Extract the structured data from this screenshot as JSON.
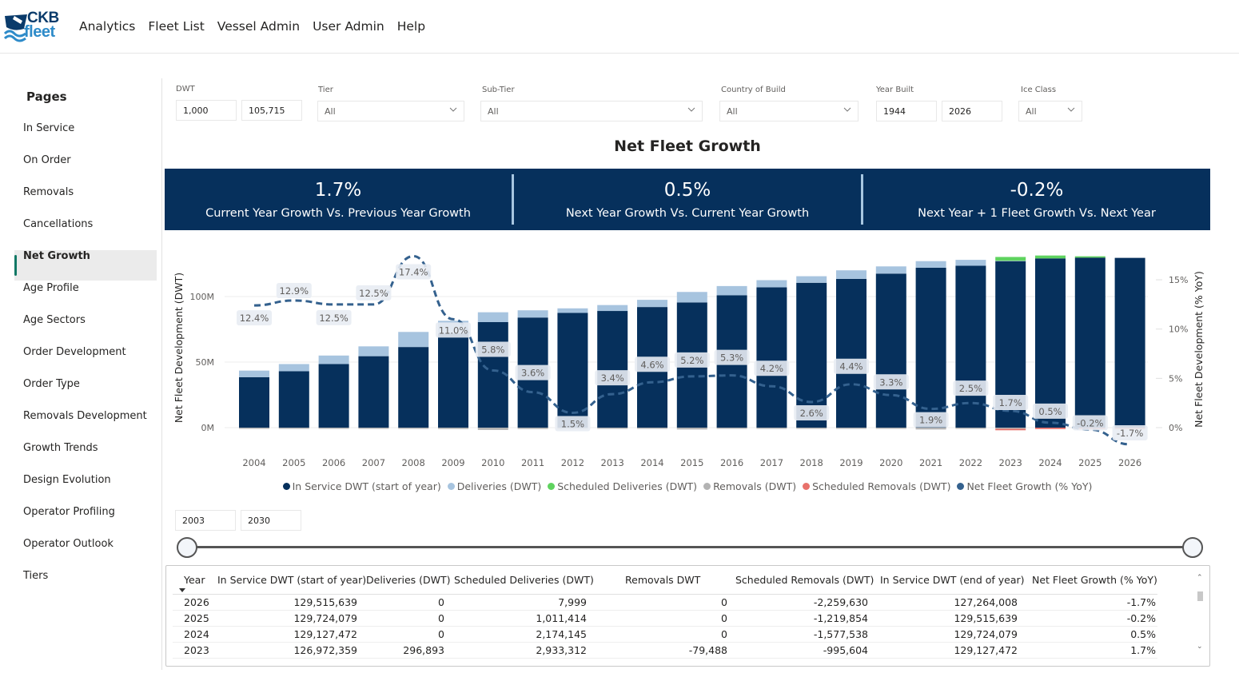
{
  "app": {
    "logo_top": "CKB",
    "logo_bottom": "fleet",
    "nav": [
      "Analytics",
      "Fleet List",
      "Vessel Admin",
      "User Admin",
      "Help"
    ]
  },
  "sidebar": {
    "title": "Pages",
    "items": [
      {
        "label": "In Service",
        "active": false
      },
      {
        "label": "On Order",
        "active": false
      },
      {
        "label": "Removals",
        "active": false
      },
      {
        "label": "Cancellations",
        "active": false
      },
      {
        "label": "Net Growth",
        "active": true
      },
      {
        "label": "Age Profile",
        "active": false
      },
      {
        "label": "Age Sectors",
        "active": false
      },
      {
        "label": "Order Development",
        "active": false
      },
      {
        "label": "Order Type",
        "active": false
      },
      {
        "label": "Removals Development",
        "active": false
      },
      {
        "label": "Growth Trends",
        "active": false
      },
      {
        "label": "Design Evolution",
        "active": false
      },
      {
        "label": "Operator Profiling",
        "active": false
      },
      {
        "label": "Operator Outlook",
        "active": false
      },
      {
        "label": "Tiers",
        "active": false
      }
    ]
  },
  "filters": {
    "dwt": {
      "label": "DWT",
      "min": "1,000",
      "max": "105,715"
    },
    "tier": {
      "label": "Tier",
      "value": "All"
    },
    "sub_tier": {
      "label": "Sub-Tier",
      "value": "All"
    },
    "country": {
      "label": "Country of Build",
      "value": "All"
    },
    "year_built": {
      "label": "Year Built",
      "min": "1944",
      "max": "2026"
    },
    "ice_class": {
      "label": "Ice Class",
      "value": "All"
    }
  },
  "page_title": "Net Fleet Growth",
  "kpis": [
    {
      "value": "1.7%",
      "label": "Current Year Growth Vs. Previous Year Growth"
    },
    {
      "value": "0.5%",
      "label": "Next Year Growth Vs. Current Year Growth"
    },
    {
      "value": "-0.2%",
      "label": "Next Year + 1 Fleet Growth Vs. Next Year"
    }
  ],
  "colors": {
    "in_service": "#06305c",
    "deliveries": "#a7c4df",
    "scheduled_deliveries": "#5fd35f",
    "removals": "#b3b3b3",
    "scheduled_removals": "#e8716b",
    "growth_line": "#34618e",
    "kpi_bg": "#06305c"
  },
  "chart_data": {
    "type": "bar",
    "title": "Net Fleet Growth",
    "xlabel": "",
    "ylabel": "Net Fleet Development (DWT)",
    "y2label": "Net Fleet Development (% YoY)",
    "ylim": [
      -5,
      130
    ],
    "y2lim": [
      -2,
      17
    ],
    "yticks": [
      "0M",
      "50M",
      "100M"
    ],
    "y2ticks": [
      "0%",
      "5%",
      "10%",
      "15%"
    ],
    "categories": [
      "2004",
      "2005",
      "2006",
      "2007",
      "2008",
      "2009",
      "2010",
      "2011",
      "2012",
      "2013",
      "2014",
      "2015",
      "2016",
      "2017",
      "2018",
      "2019",
      "2020",
      "2021",
      "2022",
      "2023",
      "2024",
      "2025",
      "2026"
    ],
    "series": [
      {
        "name": "In Service DWT (start of year)",
        "unit": "M",
        "values": [
          38.5,
          43,
          48.5,
          54.5,
          61.5,
          72,
          80.5,
          84,
          87.5,
          89,
          92,
          95.5,
          101,
          107,
          110.5,
          113.5,
          117.5,
          122,
          123.5,
          127,
          129.1,
          129.7,
          129.5
        ]
      },
      {
        "name": "Deliveries (DWT)",
        "unit": "M",
        "values": [
          5,
          5.5,
          6.5,
          7.5,
          11.5,
          9.5,
          7.5,
          5.5,
          3.5,
          4.5,
          5.5,
          8,
          7,
          5.5,
          5,
          6.5,
          5.5,
          5,
          4.5,
          0.3,
          0,
          0,
          0
        ]
      },
      {
        "name": "Scheduled Deliveries (DWT)",
        "unit": "M",
        "values": [
          0,
          0,
          0,
          0,
          0,
          0,
          0,
          0,
          0,
          0,
          0,
          0,
          0,
          0,
          0,
          0,
          0,
          0,
          0,
          2.9,
          2.2,
          1.0,
          0.008
        ]
      },
      {
        "name": "Removals (DWT)",
        "unit": "M",
        "values": [
          -0.6,
          -0.5,
          -0.6,
          -0.8,
          -0.6,
          -1.5,
          -2.5,
          -1.5,
          -1.5,
          -1.2,
          -1,
          -2,
          -1.2,
          -0.8,
          -1.2,
          -0.6,
          -0.6,
          -2,
          -0.7,
          -0.08,
          0,
          0,
          0
        ]
      },
      {
        "name": "Scheduled Removals (DWT)",
        "unit": "M",
        "values": [
          0,
          0,
          0,
          0,
          0,
          0,
          0,
          0,
          0,
          0,
          0,
          0,
          0,
          0,
          0,
          0,
          0,
          0,
          0,
          -1.0,
          -1.6,
          -1.2,
          -2.3
        ]
      },
      {
        "name": "Net Fleet Growth (% YoY)",
        "unit": "%",
        "axis": "right",
        "values": [
          12.4,
          12.9,
          12.5,
          12.5,
          17.4,
          11.0,
          5.8,
          3.6,
          1.5,
          3.4,
          4.6,
          5.2,
          5.3,
          4.2,
          2.6,
          4.4,
          3.3,
          1.9,
          2.5,
          1.7,
          0.5,
          -0.2,
          -1.7
        ]
      }
    ],
    "legend_position": "bottom",
    "grid": true
  },
  "range": {
    "from": "2003",
    "to": "2030",
    "from_frac": 0,
    "to_frac": 1
  },
  "table": {
    "columns": [
      "Year",
      "In Service DWT (start of year)",
      "Deliveries (DWT)",
      "Scheduled Deliveries (DWT)",
      "Removals DWT",
      "Scheduled Removals (DWT)",
      "In Service DWT (end of year)",
      "Net Fleet Growth (% YoY)"
    ],
    "rows": [
      [
        "2026",
        "129,515,639",
        "0",
        "7,999",
        "0",
        "-2,259,630",
        "127,264,008",
        "-1.7%"
      ],
      [
        "2025",
        "129,724,079",
        "0",
        "1,011,414",
        "0",
        "-1,219,854",
        "129,515,639",
        "-0.2%"
      ],
      [
        "2024",
        "129,127,472",
        "0",
        "2,174,145",
        "0",
        "-1,577,538",
        "129,724,079",
        "0.5%"
      ],
      [
        "2023",
        "126,972,359",
        "296,893",
        "2,933,312",
        "-79,488",
        "-995,604",
        "129,127,472",
        "1.7%"
      ]
    ]
  }
}
